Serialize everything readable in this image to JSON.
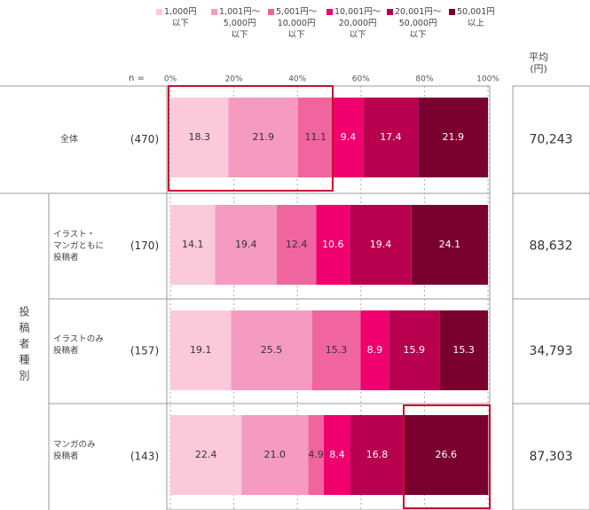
{
  "chart_data": {
    "type": "bar",
    "orientation": "horizontal",
    "stacked": true,
    "n_header": "n =",
    "average_header": "平均\n(円)",
    "group_label": "投稿者種別",
    "categories": [
      "全体",
      "イラスト・\nマンガともに\n投稿者",
      "イラストのみ\n投稿者",
      "マンガのみ\n投稿者"
    ],
    "n_labels": [
      "(470)",
      "(170)",
      "(157)",
      "(143)"
    ],
    "averages": [
      "70,243",
      "88,632",
      "34,793",
      "87,303"
    ],
    "xlim": [
      0,
      100
    ],
    "xticks": [
      {
        "value": 0,
        "label": "0%"
      },
      {
        "value": 20,
        "label": "20%"
      },
      {
        "value": 40,
        "label": "40%"
      },
      {
        "value": 60,
        "label": "60%"
      },
      {
        "value": 80,
        "label": "80%"
      },
      {
        "value": 100,
        "label": "100%"
      }
    ],
    "grid": true,
    "series": [
      {
        "name": "1,000円\n以下",
        "color": "#fbc9da",
        "values": [
          18.3,
          14.1,
          19.1,
          22.4
        ]
      },
      {
        "name": "1,001円～\n5,000円\n以下",
        "color": "#f59bc1",
        "values": [
          21.9,
          19.4,
          25.5,
          21.0
        ],
        "value_labels": [
          "21.9",
          "19.4",
          "25.5",
          "21.0"
        ]
      },
      {
        "name": "5,001円～\n10,000円\n以下",
        "color": "#f0649f",
        "values": [
          11.1,
          12.4,
          15.3,
          4.9
        ]
      },
      {
        "name": "10,001円～\n20,000円\n以下",
        "color": "#f0006e",
        "values": [
          9.4,
          10.6,
          8.9,
          8.4
        ]
      },
      {
        "name": "20,001円～\n50,000円\n以下",
        "color": "#b8004f",
        "values": [
          17.4,
          19.4,
          15.9,
          16.8
        ]
      },
      {
        "name": "50,001円\n以上",
        "color": "#7a0030",
        "values": [
          21.9,
          24.1,
          15.3,
          26.6
        ]
      }
    ]
  }
}
